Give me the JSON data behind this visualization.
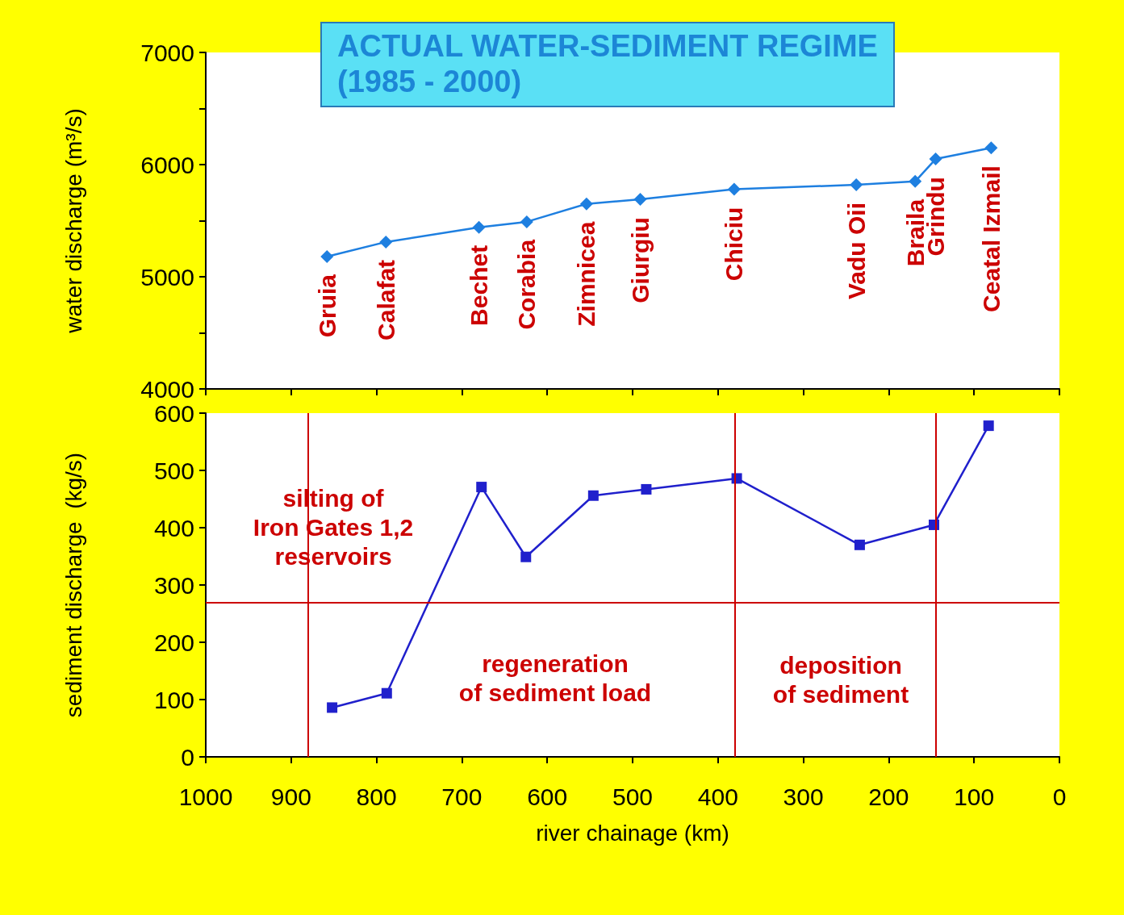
{
  "chart_data": [
    {
      "type": "line",
      "title": "ACTUAL WATER-SEDIMENT REGIME",
      "subtitle": "(1985 - 2000)",
      "ylabel": "water discharge (m³/s)",
      "series": [
        {
          "color": "#1e7fe0",
          "x": [
            858,
            789,
            680,
            624,
            554,
            491,
            381,
            238,
            169,
            145,
            80
          ],
          "values": [
            5180,
            5310,
            5440,
            5490,
            5650,
            5690,
            5780,
            5820,
            5850,
            6050,
            6150
          ]
        }
      ],
      "annotations": [
        {
          "text": "Gruia",
          "x": 858,
          "y": 5180
        },
        {
          "text": "Calafat",
          "x": 789,
          "y": 5310
        },
        {
          "text": "Bechet",
          "x": 680,
          "y": 5440
        },
        {
          "text": "Corabia",
          "x": 624,
          "y": 5490
        },
        {
          "text": "Zimnicea",
          "x": 554,
          "y": 5650
        },
        {
          "text": "Giurgiu",
          "x": 491,
          "y": 5690
        },
        {
          "text": "Chiciu",
          "x": 381,
          "y": 5780
        },
        {
          "text": "Vadu Oii",
          "x": 238,
          "y": 5820
        },
        {
          "text": "Braila",
          "x": 169,
          "y": 5850
        },
        {
          "text": "Grindu",
          "x": 145,
          "y": 6050
        },
        {
          "text": "Ceatal Izmail",
          "x": 80,
          "y": 6150
        }
      ],
      "xlim": [
        1000,
        0
      ],
      "xticks": [
        {
          "value": 1000,
          "label": null
        },
        {
          "value": 900,
          "label": null
        },
        {
          "value": 800,
          "label": null
        },
        {
          "value": 700,
          "label": null
        },
        {
          "value": 600,
          "label": null
        },
        {
          "value": 500,
          "label": null
        },
        {
          "value": 400,
          "label": null
        },
        {
          "value": 300,
          "label": null
        },
        {
          "value": 200,
          "label": null
        },
        {
          "value": 100,
          "label": null
        },
        {
          "value": 0,
          "label": null
        }
      ],
      "ylim": [
        4000,
        7000
      ],
      "yticks": [
        4000,
        {
          "value": 4500,
          "label": null
        },
        5000,
        {
          "value": 5500,
          "label": null
        },
        6000,
        {
          "value": 6500,
          "label": null
        },
        7000
      ],
      "tick_labels": "y",
      "marker": "diamond",
      "line_style": "solid",
      "grid": false
    },
    {
      "type": "line",
      "xlabel": "river chainage (km)",
      "ylabel": "sediment discharge  (kg/s)",
      "series": [
        {
          "color": "#2020cc",
          "x": [
            852,
            788,
            677,
            625,
            546,
            484,
            378,
            234,
            147,
            83
          ],
          "values": [
            86,
            111,
            471,
            349,
            456,
            467,
            486,
            370,
            405,
            578
          ]
        }
      ],
      "annotations": [
        "silting of\nIron Gates 1,2\nreservoirs",
        "regeneration\nof sediment load",
        "deposition\nof sediment"
      ],
      "ref_lines": [
        {
          "axis": "y",
          "value": 270,
          "color": "#cc0000"
        },
        {
          "axis": "x",
          "value": 880,
          "color": "#cc0000"
        },
        {
          "axis": "x",
          "value": 380,
          "color": "#cc0000"
        },
        {
          "axis": "x",
          "value": 145,
          "color": "#cc0000"
        }
      ],
      "xlim": [
        1000,
        0
      ],
      "xticks": [
        1000,
        900,
        800,
        700,
        600,
        500,
        400,
        300,
        200,
        100,
        0
      ],
      "ylim": [
        0,
        600
      ],
      "yticks": [
        0,
        100,
        200,
        300,
        400,
        500,
        600
      ],
      "marker": "square",
      "line_style": "solid",
      "grid": false
    }
  ]
}
